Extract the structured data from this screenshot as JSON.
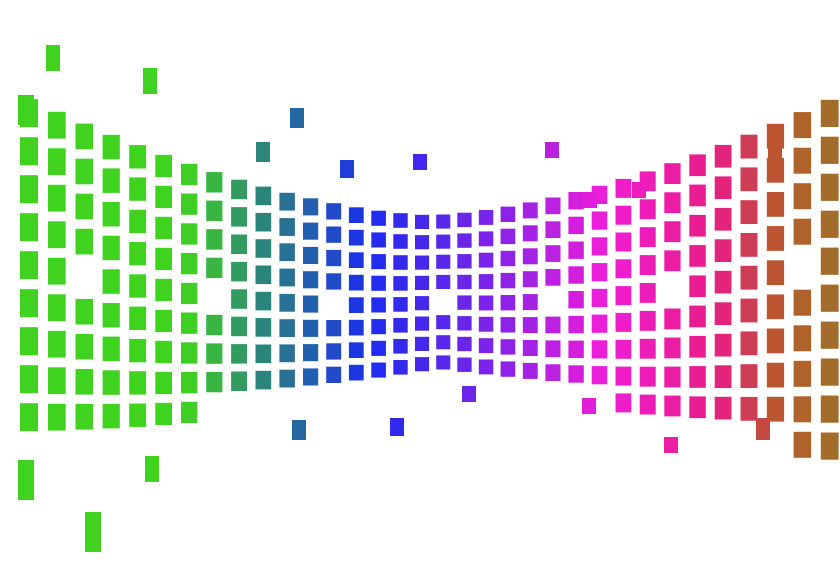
{
  "artwork": {
    "subject": "equalizer-mosaic",
    "palette": {
      "green": "#3fd21f",
      "teal": "#2e8f6e",
      "blue": "#1a2cf0",
      "violet": "#8a22e8",
      "magenta": "#f01ed8",
      "pink": "#e81c86",
      "rust": "#b85a2a",
      "olive": "#a0702a"
    }
  }
}
